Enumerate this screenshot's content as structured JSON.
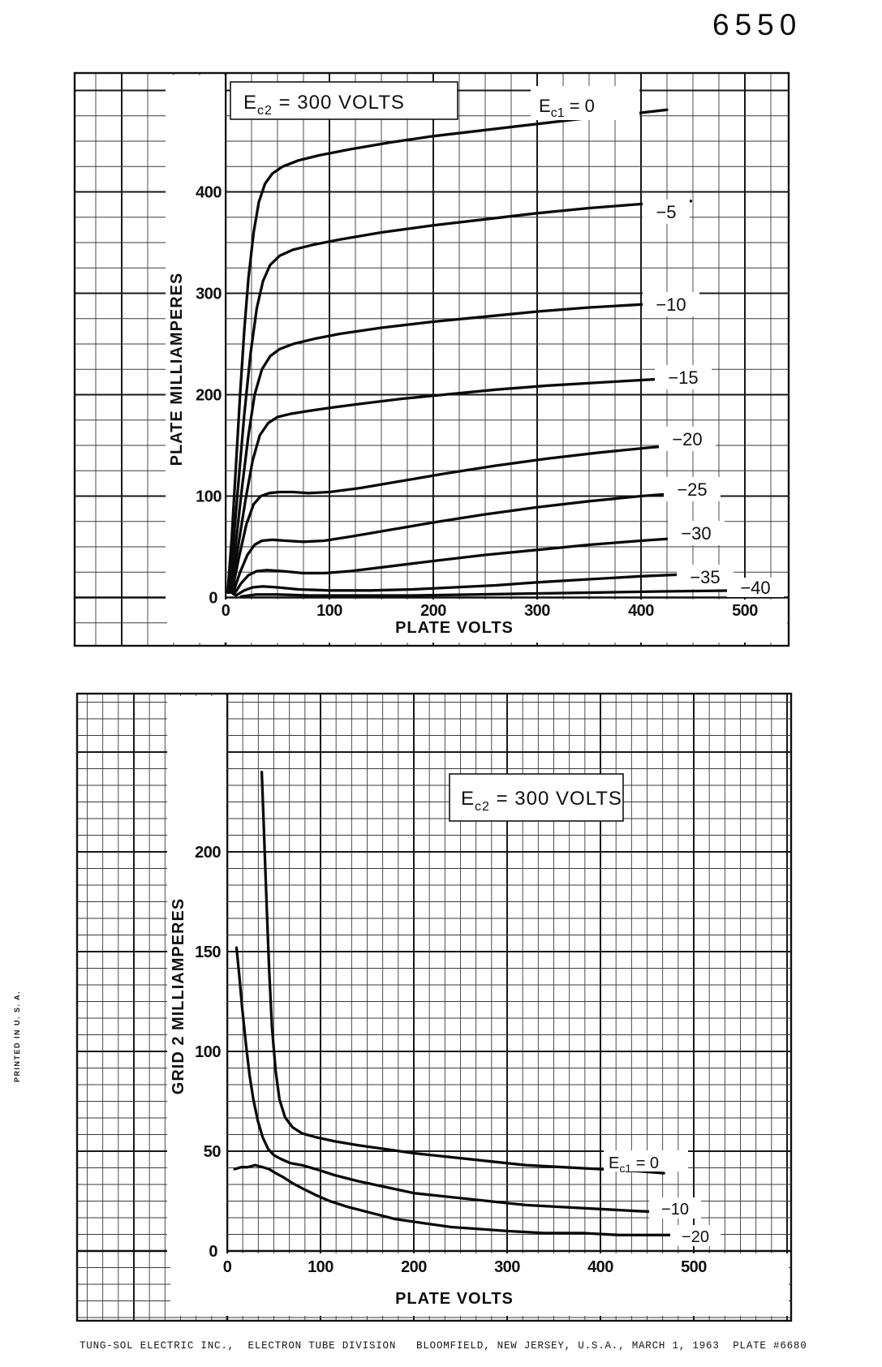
{
  "page_title": "6550",
  "printed_note": "PRINTED IN U. S. A.",
  "footer": "TUNG-SOL ELECTRIC INC.,  ELECTRON TUBE DIVISION   BLOOMFIELD, NEW JERSEY, U.S.A., MARCH 1, 1963  PLATE #6680",
  "colors": {
    "ink": "#101010",
    "paper": "#ffffff"
  },
  "chart_data": [
    {
      "id": "plate",
      "type": "line",
      "title": "Ec2 = 300 VOLTS",
      "title_parts": {
        "prefix": "E",
        "sub": "c2",
        "rest": " = 300 VOLTS"
      },
      "xlabel": "PLATE VOLTS",
      "ylabel": "PLATE MILLIAMPERES",
      "xlim": [
        0,
        500
      ],
      "ylim": [
        0,
        520
      ],
      "x_ticks": [
        "0",
        "100",
        "200",
        "300",
        "400",
        "500"
      ],
      "y_ticks": [
        "400",
        "300",
        "200",
        "100",
        "0"
      ],
      "grid": "on",
      "ec2_volts": 300,
      "series": [
        {
          "ec1": 0,
          "name": "Ec1 = 0",
          "label_parts": {
            "prefix": "E",
            "sub": "c1",
            "rest": " = 0"
          },
          "points": [
            [
              2,
              5
            ],
            [
              6,
              60
            ],
            [
              10,
              130
            ],
            [
              14,
              200
            ],
            [
              18,
              263
            ],
            [
              22,
              315
            ],
            [
              27,
              360
            ],
            [
              32,
              390
            ],
            [
              38,
              408
            ],
            [
              45,
              418
            ],
            [
              55,
              425
            ],
            [
              70,
              431
            ],
            [
              90,
              436
            ],
            [
              120,
              442
            ],
            [
              160,
              449
            ],
            [
              200,
              455
            ],
            [
              250,
              461
            ],
            [
              300,
              467
            ],
            [
              350,
              473
            ],
            [
              400,
              478
            ],
            [
              425,
              481
            ]
          ]
        },
        {
          "ec1": -5,
          "label": "−5",
          "points": [
            [
              3,
              5
            ],
            [
              8,
              60
            ],
            [
              13,
              120
            ],
            [
              18,
              180
            ],
            [
              24,
              240
            ],
            [
              30,
              285
            ],
            [
              36,
              312
            ],
            [
              43,
              328
            ],
            [
              52,
              337
            ],
            [
              65,
              343
            ],
            [
              85,
              348
            ],
            [
              110,
              353
            ],
            [
              150,
              360
            ],
            [
              200,
              367
            ],
            [
              250,
              373
            ],
            [
              300,
              379
            ],
            [
              350,
              384
            ],
            [
              400,
              388
            ],
            [
              448,
              391
            ]
          ]
        },
        {
          "ec1": -10,
          "label": "−10",
          "points": [
            [
              4,
              5
            ],
            [
              10,
              55
            ],
            [
              16,
              110
            ],
            [
              22,
              160
            ],
            [
              28,
              200
            ],
            [
              35,
              225
            ],
            [
              43,
              238
            ],
            [
              52,
              245
            ],
            [
              65,
              250
            ],
            [
              85,
              255
            ],
            [
              110,
              260
            ],
            [
              150,
              266
            ],
            [
              200,
              272
            ],
            [
              250,
              277
            ],
            [
              300,
              282
            ],
            [
              350,
              286
            ],
            [
              400,
              289
            ],
            [
              452,
              292
            ]
          ]
        },
        {
          "ec1": -15,
          "label": "−15",
          "points": [
            [
              5,
              5
            ],
            [
              12,
              50
            ],
            [
              19,
              95
            ],
            [
              26,
              135
            ],
            [
              33,
              160
            ],
            [
              41,
              172
            ],
            [
              50,
              178
            ],
            [
              62,
              181
            ],
            [
              80,
              184
            ],
            [
              100,
              187
            ],
            [
              130,
              191
            ],
            [
              170,
              196
            ],
            [
              210,
              200
            ],
            [
              260,
              205
            ],
            [
              310,
              209
            ],
            [
              360,
              212
            ],
            [
              410,
              215
            ],
            [
              458,
              217
            ]
          ]
        },
        {
          "ec1": -20,
          "label": "−20",
          "points": [
            [
              6,
              5
            ],
            [
              13,
              40
            ],
            [
              20,
              72
            ],
            [
              27,
              92
            ],
            [
              34,
              100
            ],
            [
              42,
              103
            ],
            [
              52,
              104
            ],
            [
              65,
              104
            ],
            [
              80,
              103
            ],
            [
              100,
              104
            ],
            [
              130,
              108
            ],
            [
              170,
              115
            ],
            [
              210,
              122
            ],
            [
              260,
              130
            ],
            [
              310,
              137
            ],
            [
              360,
              143
            ],
            [
              410,
              148
            ],
            [
              462,
              152
            ]
          ]
        },
        {
          "ec1": -25,
          "label": "−25",
          "points": [
            [
              7,
              4
            ],
            [
              14,
              25
            ],
            [
              21,
              42
            ],
            [
              28,
              52
            ],
            [
              35,
              56
            ],
            [
              45,
              57
            ],
            [
              58,
              56
            ],
            [
              75,
              55
            ],
            [
              95,
              56
            ],
            [
              120,
              60
            ],
            [
              160,
              67
            ],
            [
              200,
              74
            ],
            [
              250,
              82
            ],
            [
              300,
              89
            ],
            [
              350,
              95
            ],
            [
              400,
              100
            ],
            [
              465,
              105
            ]
          ]
        },
        {
          "ec1": -30,
          "label": "−30",
          "points": [
            [
              8,
              3
            ],
            [
              15,
              14
            ],
            [
              22,
              22
            ],
            [
              30,
              26
            ],
            [
              40,
              27
            ],
            [
              55,
              26
            ],
            [
              75,
              24
            ],
            [
              95,
              24
            ],
            [
              120,
              26
            ],
            [
              160,
              31
            ],
            [
              200,
              36
            ],
            [
              250,
              42
            ],
            [
              300,
              47
            ],
            [
              350,
              52
            ],
            [
              400,
              56
            ],
            [
              470,
              61
            ]
          ]
        },
        {
          "ec1": -35,
          "label": "−35",
          "points": [
            [
              10,
              2
            ],
            [
              18,
              7
            ],
            [
              26,
              10
            ],
            [
              36,
              11
            ],
            [
              50,
              10
            ],
            [
              70,
              8
            ],
            [
              100,
              7
            ],
            [
              140,
              7
            ],
            [
              180,
              8
            ],
            [
              220,
              10
            ],
            [
              260,
              12
            ],
            [
              300,
              15
            ],
            [
              350,
              18
            ],
            [
              400,
              21
            ],
            [
              445,
              23
            ],
            [
              485,
              25
            ]
          ]
        },
        {
          "ec1": -40,
          "label": "−40",
          "points": [
            [
              15,
              1
            ],
            [
              30,
              3
            ],
            [
              50,
              3
            ],
            [
              80,
              2
            ],
            [
              120,
              2
            ],
            [
              180,
              2
            ],
            [
              240,
              3
            ],
            [
              300,
              4
            ],
            [
              360,
              5
            ],
            [
              420,
              6
            ],
            [
              500,
              7
            ]
          ]
        }
      ]
    },
    {
      "id": "grid2",
      "type": "line",
      "title": "Ec2 = 300 VOLTS",
      "title_parts": {
        "prefix": "E",
        "sub": "c2",
        "rest": " = 300 VOLTS"
      },
      "xlabel": "PLATE VOLTS",
      "ylabel": "GRID 2 MILLIAMPERES",
      "xlim": [
        0,
        500
      ],
      "ylim": [
        0,
        280
      ],
      "x_ticks": [
        "0",
        "100",
        "200",
        "300",
        "400",
        "500"
      ],
      "y_ticks": [
        "200",
        "150",
        "100",
        "50",
        "0"
      ],
      "grid": "on",
      "ec2_volts": 300,
      "series": [
        {
          "ec1": 0,
          "name": "Ec1 = 0",
          "label_parts": {
            "prefix": "E",
            "sub": "c1",
            "rest": " = 0"
          },
          "points": [
            [
              37,
              240
            ],
            [
              39,
              215
            ],
            [
              41,
              190
            ],
            [
              43,
              165
            ],
            [
              45,
              140
            ],
            [
              48,
              112
            ],
            [
              52,
              90
            ],
            [
              56,
              76
            ],
            [
              62,
              67
            ],
            [
              70,
              62
            ],
            [
              80,
              59
            ],
            [
              95,
              57
            ],
            [
              115,
              55
            ],
            [
              140,
              53
            ],
            [
              170,
              51
            ],
            [
              200,
              49
            ],
            [
              240,
              47
            ],
            [
              280,
              45
            ],
            [
              320,
              43
            ],
            [
              360,
              42
            ],
            [
              400,
              41
            ],
            [
              440,
              40
            ],
            [
              468,
              39
            ]
          ]
        },
        {
          "ec1": -10,
          "label": "−10",
          "points": [
            [
              10,
              152
            ],
            [
              13,
              138
            ],
            [
              16,
              122
            ],
            [
              20,
              104
            ],
            [
              24,
              88
            ],
            [
              28,
              76
            ],
            [
              33,
              65
            ],
            [
              38,
              57
            ],
            [
              44,
              51
            ],
            [
              50,
              48
            ],
            [
              58,
              46
            ],
            [
              68,
              44
            ],
            [
              80,
              43
            ],
            [
              95,
              41
            ],
            [
              115,
              38
            ],
            [
              140,
              35
            ],
            [
              170,
              32
            ],
            [
              200,
              29
            ],
            [
              240,
              27
            ],
            [
              280,
              25
            ],
            [
              320,
              23
            ],
            [
              360,
              22
            ],
            [
              400,
              21
            ],
            [
              440,
              20
            ],
            [
              495,
              19
            ]
          ]
        },
        {
          "ec1": -20,
          "label": "−20",
          "points": [
            [
              8,
              41
            ],
            [
              15,
              42
            ],
            [
              22,
              42
            ],
            [
              30,
              43
            ],
            [
              38,
              42
            ],
            [
              45,
              41
            ],
            [
              52,
              39
            ],
            [
              60,
              37
            ],
            [
              70,
              34
            ],
            [
              82,
              31
            ],
            [
              95,
              28
            ],
            [
              110,
              25
            ],
            [
              130,
              22
            ],
            [
              155,
              19
            ],
            [
              180,
              16
            ],
            [
              210,
              14
            ],
            [
              240,
              12
            ],
            [
              270,
              11
            ],
            [
              300,
              10
            ],
            [
              340,
              9
            ],
            [
              380,
              9
            ],
            [
              420,
              8
            ],
            [
              460,
              8
            ],
            [
              500,
              8
            ]
          ]
        }
      ]
    }
  ]
}
